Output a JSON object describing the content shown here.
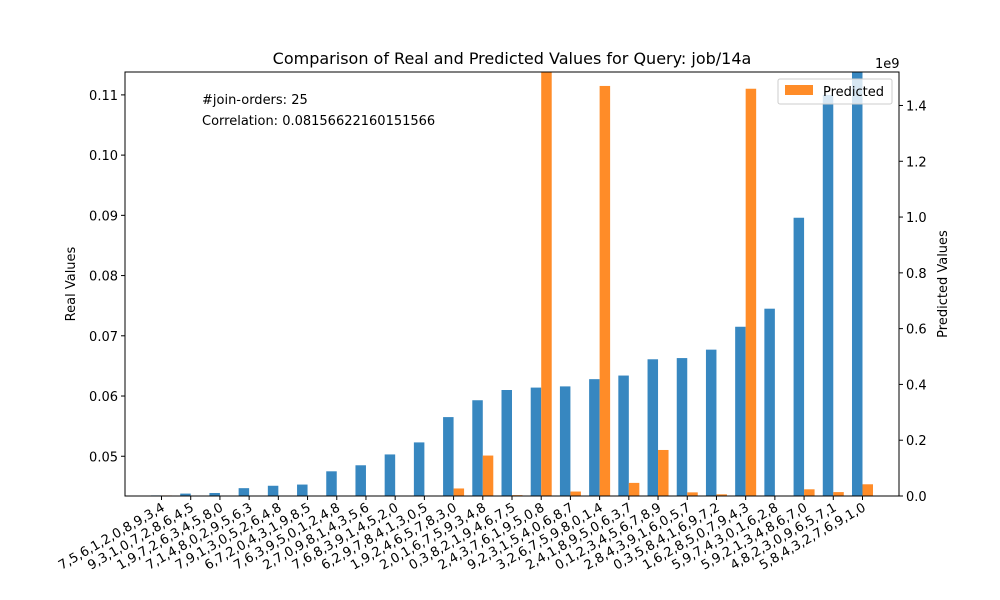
{
  "chart_data": {
    "type": "bar",
    "title": "Comparison of Real and Predicted Values for Query: job/14a",
    "ylabel_left": "Real Values",
    "ylabel_right": "Predicted Values",
    "right_axis_multiplier": "1e9",
    "ylim_left": [
      0.0434,
      0.1138
    ],
    "ylim_right": [
      0,
      1.52
    ],
    "yticks_left": [
      0.05,
      0.06,
      0.07,
      0.08,
      0.09,
      0.1,
      0.11
    ],
    "yticks_left_labels": [
      "0.05",
      "0.06",
      "0.07",
      "0.08",
      "0.09",
      "0.10",
      "0.11"
    ],
    "yticks_right": [
      0.0,
      0.2,
      0.4,
      0.6,
      0.8,
      1.0,
      1.2,
      1.4
    ],
    "yticks_right_labels": [
      "0.0",
      "0.2",
      "0.4",
      "0.6",
      "0.8",
      "1.0",
      "1.2",
      "1.4"
    ],
    "categories": [
      "7,5,6,1,2,0,8,9,3,4",
      "9,3,1,0,7,2,8,6,4,5",
      "1,9,7,2,6,3,4,5,8,0",
      "7,1,4,8,0,2,9,5,6,3",
      "7,9,1,3,0,5,2,6,4,8",
      "6,7,2,0,4,3,1,9,8,5",
      "7,6,3,9,5,0,1,2,4,8",
      "2,7,0,9,8,1,4,3,5,6",
      "7,6,8,3,9,1,4,5,2,0",
      "6,2,9,7,8,4,1,3,0,5",
      "1,9,2,4,6,5,7,8,3,0",
      "2,0,1,6,7,5,9,3,4,8",
      "0,3,8,2,1,9,4,6,7,5",
      "2,4,3,7,6,1,9,5,0,8",
      "9,2,3,1,5,4,0,6,8,7",
      "3,2,6,7,5,9,8,0,1,4",
      "2,4,1,8,9,5,0,6,3,7",
      "0,1,2,3,4,5,6,7,8,9",
      "2,8,4,3,9,1,6,0,5,7",
      "0,3,5,8,4,1,6,9,7,2",
      "1,6,2,8,5,0,7,9,4,3",
      "5,9,7,4,3,0,1,6,2,8",
      "5,9,2,1,3,4,8,6,7,0",
      "4,8,2,3,0,9,6,5,7,1",
      "5,8,4,3,2,7,6,9,1,0"
    ],
    "series": [
      {
        "name": "",
        "axis": "left",
        "color": "#3787c0",
        "values": [
          0.0435,
          0.0438,
          0.0439,
          0.0447,
          0.0451,
          0.0453,
          0.0475,
          0.0485,
          0.0503,
          0.0523,
          0.0565,
          0.0593,
          0.061,
          0.0614,
          0.0616,
          0.0628,
          0.0634,
          0.0661,
          0.0663,
          0.0677,
          0.0715,
          0.0745,
          0.0896,
          0.11,
          0.1138
        ]
      },
      {
        "name": "Predicted",
        "axis": "right",
        "color": "#ff8c28",
        "values": [
          0.002,
          0.0,
          0.0,
          0.0,
          0.0,
          0.0,
          0.001,
          0.0,
          0.0,
          0.0,
          0.027,
          0.145,
          0.003,
          1.52,
          0.016,
          1.47,
          0.047,
          0.165,
          0.013,
          0.006,
          1.46,
          0.0,
          0.024,
          0.014,
          0.042
        ]
      }
    ],
    "annotations": [
      "#join-orders: 25",
      "Correlation: 0.08156622160151566"
    ],
    "legend_position": "top-right",
    "grid": false
  }
}
